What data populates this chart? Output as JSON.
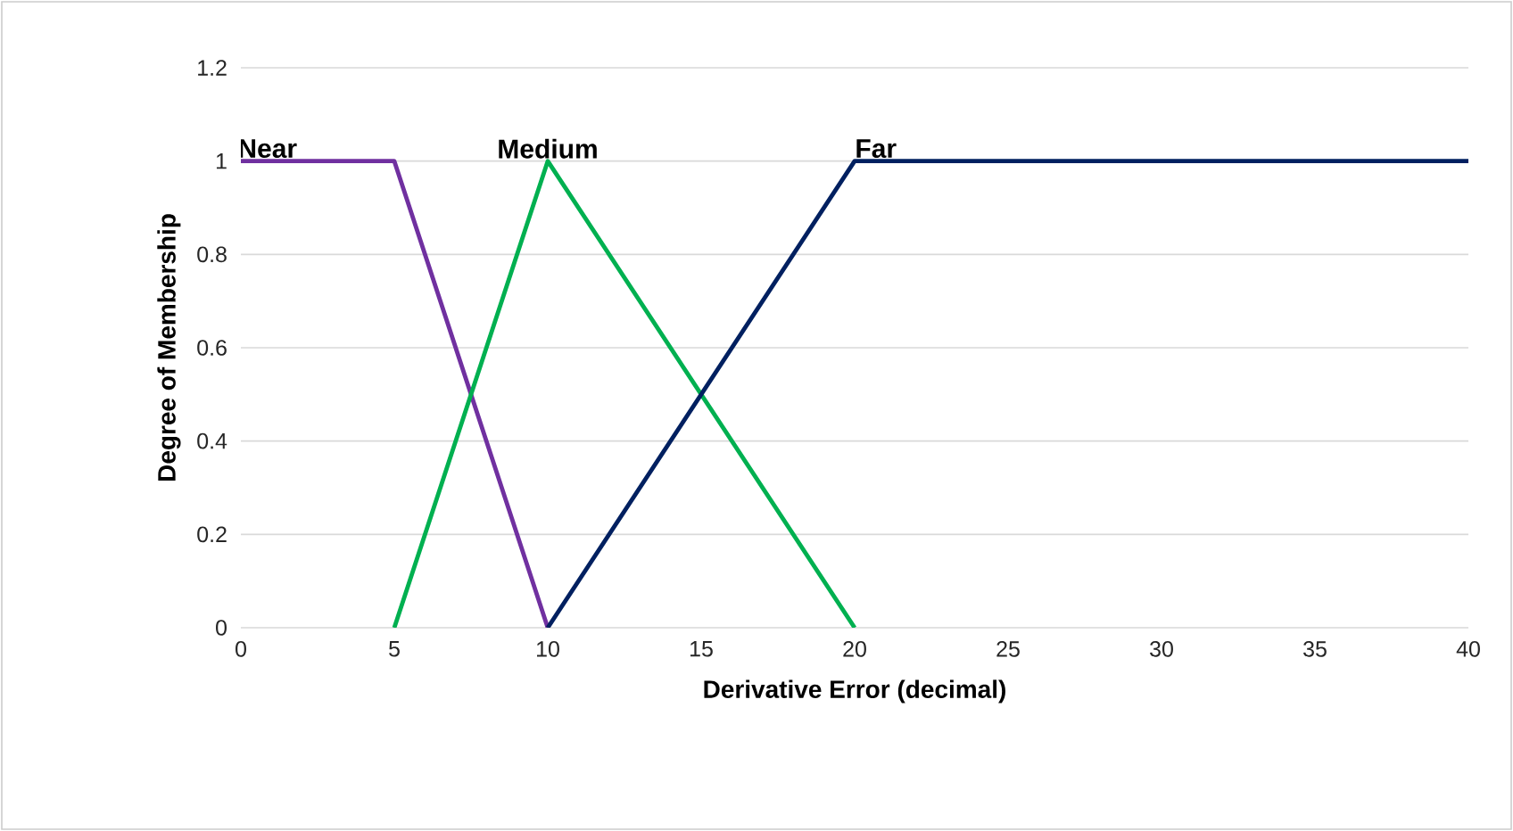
{
  "chart_data": {
    "type": "line",
    "xlabel": "Derivative Error (decimal)",
    "ylabel": "Degree of Membership",
    "xlim": [
      0,
      40
    ],
    "xticks": [
      0,
      5,
      10,
      15,
      20,
      25,
      30,
      35,
      40
    ],
    "ylim": [
      0,
      1.2
    ],
    "yticks": [
      0,
      0.2,
      0.4,
      0.6,
      0.8,
      1,
      1.2
    ],
    "grid": "y",
    "series": [
      {
        "name": "Near",
        "color": "#7030a0",
        "x": [
          0,
          5,
          10
        ],
        "values": [
          1,
          1,
          0
        ]
      },
      {
        "name": "Medium",
        "color": "#00b050",
        "x": [
          5,
          10,
          20
        ],
        "values": [
          0,
          1,
          0
        ]
      },
      {
        "name": "Far",
        "color": "#002060",
        "x": [
          10,
          20,
          40
        ],
        "values": [
          0,
          1,
          1
        ]
      }
    ]
  }
}
